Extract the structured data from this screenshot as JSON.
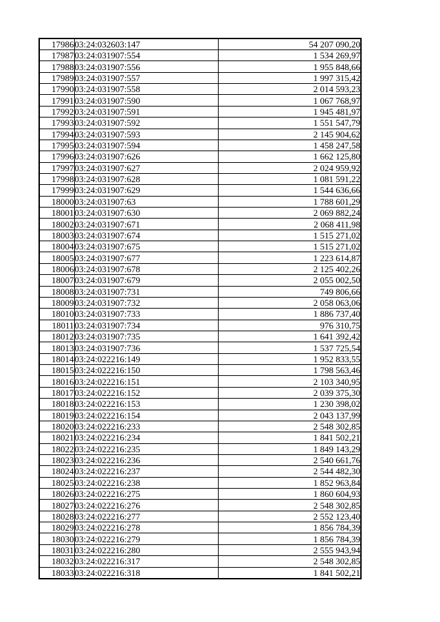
{
  "page": {
    "background_color": "#ffffff",
    "text_color": "#000000",
    "border_color": "#000000"
  },
  "table": {
    "columns": [
      {
        "key": "id",
        "align": "right"
      },
      {
        "key": "timestamp",
        "align": "left"
      },
      {
        "key": "value",
        "align": "right"
      }
    ],
    "rows": [
      [
        "17986",
        "03:24:032603:147",
        "54 207 090,20"
      ],
      [
        "17987",
        "03:24:031907:554",
        "1 534 269,97"
      ],
      [
        "17988",
        "03:24:031907:556",
        "1 955 848,66"
      ],
      [
        "17989",
        "03:24:031907:557",
        "1 997 315,42"
      ],
      [
        "17990",
        "03:24:031907:558",
        "2 014 593,23"
      ],
      [
        "17991",
        "03:24:031907:590",
        "1 067 768,97"
      ],
      [
        "17992",
        "03:24:031907:591",
        "1 945 481,97"
      ],
      [
        "17993",
        "03:24:031907:592",
        "1 551 547,79"
      ],
      [
        "17994",
        "03:24:031907:593",
        "2 145 904,62"
      ],
      [
        "17995",
        "03:24:031907:594",
        "1 458 247,58"
      ],
      [
        "17996",
        "03:24:031907:626",
        "1 662 125,80"
      ],
      [
        "17997",
        "03:24:031907:627",
        "2 024 959,92"
      ],
      [
        "17998",
        "03:24:031907:628",
        "1 081 591,22"
      ],
      [
        "17999",
        "03:24:031907:629",
        "1 544 636,66"
      ],
      [
        "18000",
        "03:24:031907:63",
        "1 788 601,29"
      ],
      [
        "18001",
        "03:24:031907:630",
        "2 069 882,24"
      ],
      [
        "18002",
        "03:24:031907:671",
        "2 068 411,98"
      ],
      [
        "18003",
        "03:24:031907:674",
        "1 515 271,02"
      ],
      [
        "18004",
        "03:24:031907:675",
        "1 515 271,02"
      ],
      [
        "18005",
        "03:24:031907:677",
        "1 223 614,87"
      ],
      [
        "18006",
        "03:24:031907:678",
        "2 125 402,26"
      ],
      [
        "18007",
        "03:24:031907:679",
        "2 055 002,50"
      ],
      [
        "18008",
        "03:24:031907:731",
        "749 806,66"
      ],
      [
        "18009",
        "03:24:031907:732",
        "2 058 063,06"
      ],
      [
        "18010",
        "03:24:031907:733",
        "1 886 737,40"
      ],
      [
        "18011",
        "03:24:031907:734",
        "976 310,75"
      ],
      [
        "18012",
        "03:24:031907:735",
        "1 641 392,42"
      ],
      [
        "18013",
        "03:24:031907:736",
        "1 537 725,54"
      ],
      [
        "18014",
        "03:24:022216:149",
        "1 952 833,55"
      ],
      [
        "18015",
        "03:24:022216:150",
        "1 798 563,46"
      ],
      [
        "18016",
        "03:24:022216:151",
        "2 103 340,95"
      ],
      [
        "18017",
        "03:24:022216:152",
        "2 039 375,30"
      ],
      [
        "18018",
        "03:24:022216:153",
        "1 230 398,02"
      ],
      [
        "18019",
        "03:24:022216:154",
        "2 043 137,99"
      ],
      [
        "18020",
        "03:24:022216:233",
        "2 548 302,85"
      ],
      [
        "18021",
        "03:24:022216:234",
        "1 841 502,21"
      ],
      [
        "18022",
        "03:24:022216:235",
        "1 849 143,29"
      ],
      [
        "18023",
        "03:24:022216:236",
        "2 540 661,76"
      ],
      [
        "18024",
        "03:24:022216:237",
        "2 544 482,30"
      ],
      [
        "18025",
        "03:24:022216:238",
        "1 852 963,84"
      ],
      [
        "18026",
        "03:24:022216:275",
        "1 860 604,93"
      ],
      [
        "18027",
        "03:24:022216:276",
        "2 548 302,85"
      ],
      [
        "18028",
        "03:24:022216:277",
        "2 552 123,40"
      ],
      [
        "18029",
        "03:24:022216:278",
        "1 856 784,39"
      ],
      [
        "18030",
        "03:24:022216:279",
        "1 856 784,39"
      ],
      [
        "18031",
        "03:24:022216:280",
        "2 555 943,94"
      ],
      [
        "18032",
        "03:24:022216:317",
        "2 548 302,85"
      ],
      [
        "18033",
        "03:24:022216:318",
        "1 841 502,21"
      ]
    ]
  }
}
